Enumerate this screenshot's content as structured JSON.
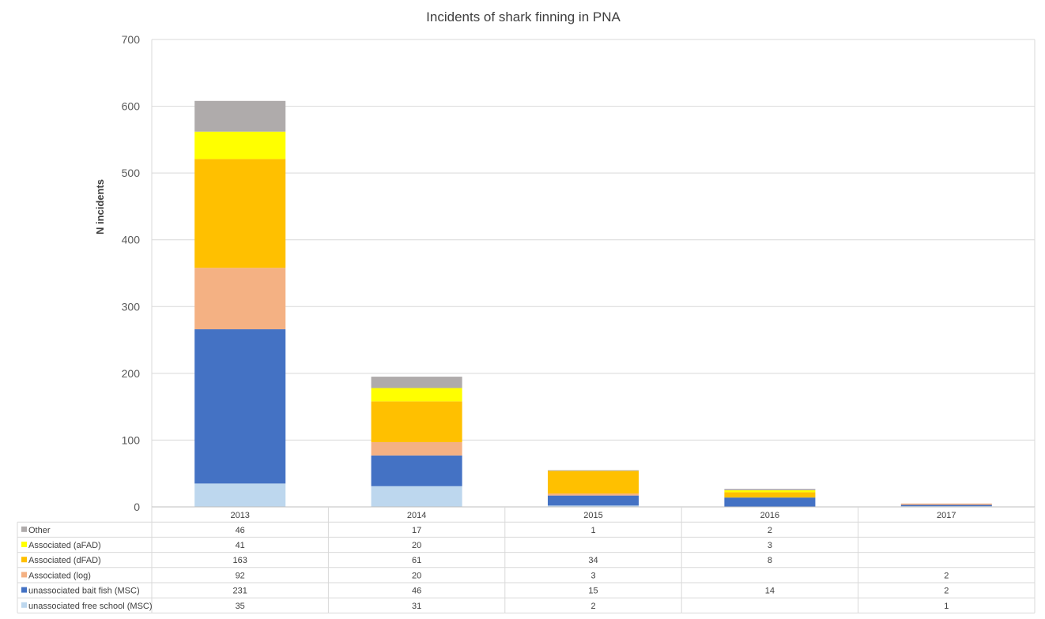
{
  "chart_data": {
    "type": "bar",
    "stacked": true,
    "title": "Incidents of shark finning in PNA",
    "xlabel": "",
    "ylabel": "N incidents",
    "ylim": [
      0,
      700
    ],
    "yticks": [
      "0",
      "100",
      "200",
      "300",
      "400",
      "500",
      "600",
      "700"
    ],
    "grid": true,
    "legend": "data-table",
    "categories": [
      "2013",
      "2014",
      "2015",
      "2016",
      "2017"
    ],
    "series": [
      {
        "name": "unassociated free school (MSC)",
        "color": "#bdd7ee",
        "values": [
          35,
          31,
          2,
          null,
          1
        ]
      },
      {
        "name": "unassociated bait fish (MSC)",
        "color": "#4472c4",
        "values": [
          231,
          46,
          15,
          14,
          2
        ]
      },
      {
        "name": "Associated (log)",
        "color": "#f4b183",
        "values": [
          92,
          20,
          3,
          null,
          2
        ]
      },
      {
        "name": "Associated (dFAD)",
        "color": "#ffc000",
        "values": [
          163,
          61,
          34,
          8,
          null
        ]
      },
      {
        "name": "Associated (aFAD)",
        "color": "#ffff00",
        "values": [
          41,
          20,
          null,
          3,
          null
        ]
      },
      {
        "name": "Other",
        "color": "#afabab",
        "values": [
          46,
          17,
          1,
          2,
          null
        ]
      }
    ]
  }
}
